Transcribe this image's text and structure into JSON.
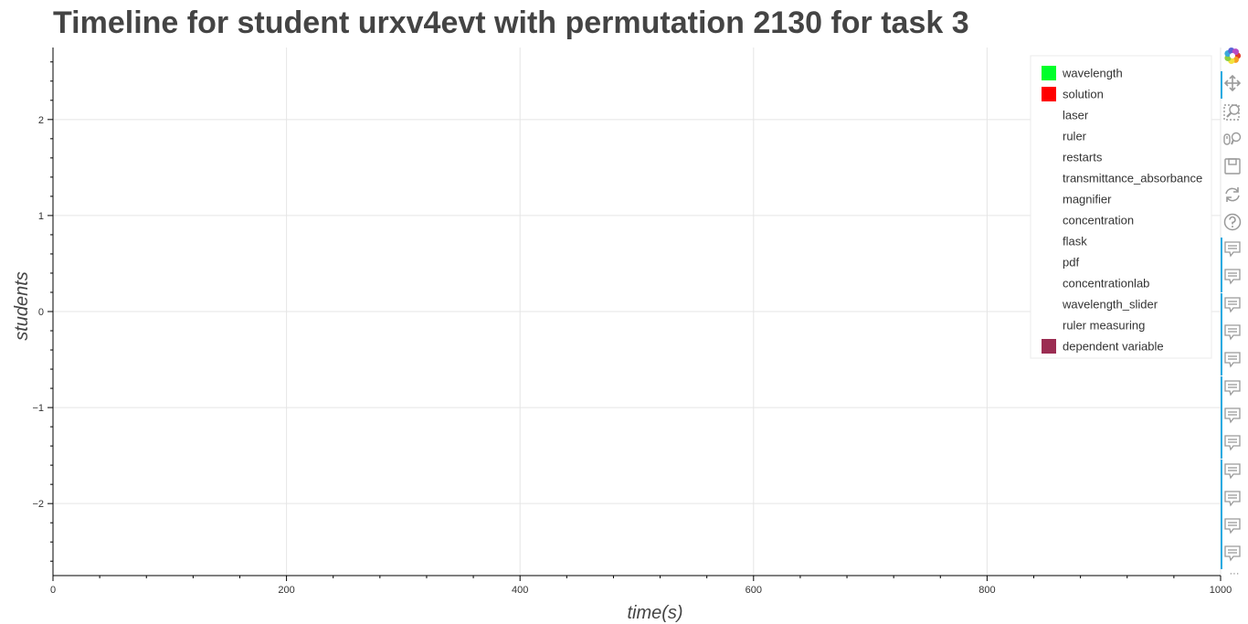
{
  "chart_data": {
    "type": "line",
    "title": "Timeline for student urxv4evt with permutation 2130 for task 3",
    "xlabel": "time(s)",
    "ylabel": "students",
    "xlim": [
      0,
      1000
    ],
    "ylim": [
      -2.75,
      2.75
    ],
    "xticks": [
      0,
      200,
      400,
      600,
      800,
      1000
    ],
    "xtick_labels": [
      "0",
      "200",
      "400",
      "600",
      "800",
      "1000"
    ],
    "yticks": [
      -2,
      -1,
      0,
      1,
      2
    ],
    "ytick_labels": [
      "−2",
      "−1",
      "0",
      "1",
      "2"
    ],
    "grid": true,
    "legend_position": "top-right",
    "series": [
      {
        "name": "wavelength",
        "color": "#00ff2a",
        "values": []
      },
      {
        "name": "solution",
        "color": "#ff0000",
        "values": []
      },
      {
        "name": "laser",
        "color": "",
        "values": []
      },
      {
        "name": "ruler",
        "color": "",
        "values": []
      },
      {
        "name": "restarts",
        "color": "",
        "values": []
      },
      {
        "name": "transmittance_absorbance",
        "color": "",
        "values": []
      },
      {
        "name": "magnifier",
        "color": "",
        "values": []
      },
      {
        "name": "concentration",
        "color": "",
        "values": []
      },
      {
        "name": "flask",
        "color": "",
        "values": []
      },
      {
        "name": "pdf",
        "color": "",
        "values": []
      },
      {
        "name": "concentrationlab",
        "color": "",
        "values": []
      },
      {
        "name": "wavelength_slider",
        "color": "",
        "values": []
      },
      {
        "name": "ruler measuring",
        "color": "",
        "values": []
      },
      {
        "name": "dependent variable",
        "color": "#9b2d52",
        "values": []
      }
    ]
  },
  "toolbar": {
    "tools": [
      {
        "icon": "bokeh-logo-icon",
        "active": false
      },
      {
        "icon": "pan-icon",
        "active": true
      },
      {
        "icon": "box-zoom-icon",
        "active": false
      },
      {
        "icon": "wheel-zoom-icon",
        "active": false
      },
      {
        "icon": "save-icon",
        "active": false
      },
      {
        "icon": "reset-icon",
        "active": false
      },
      {
        "icon": "help-icon",
        "active": false
      },
      {
        "icon": "hover-icon",
        "active": true
      },
      {
        "icon": "hover-icon",
        "active": true
      },
      {
        "icon": "hover-icon",
        "active": true
      },
      {
        "icon": "hover-icon",
        "active": true
      },
      {
        "icon": "hover-icon",
        "active": true
      },
      {
        "icon": "hover-icon",
        "active": true
      },
      {
        "icon": "hover-icon",
        "active": true
      },
      {
        "icon": "hover-icon",
        "active": true
      },
      {
        "icon": "hover-icon",
        "active": true
      },
      {
        "icon": "hover-icon",
        "active": true
      },
      {
        "icon": "hover-icon",
        "active": true
      },
      {
        "icon": "hover-icon",
        "active": true
      },
      {
        "icon": "more-icon",
        "active": false
      }
    ],
    "more_label": "···"
  }
}
